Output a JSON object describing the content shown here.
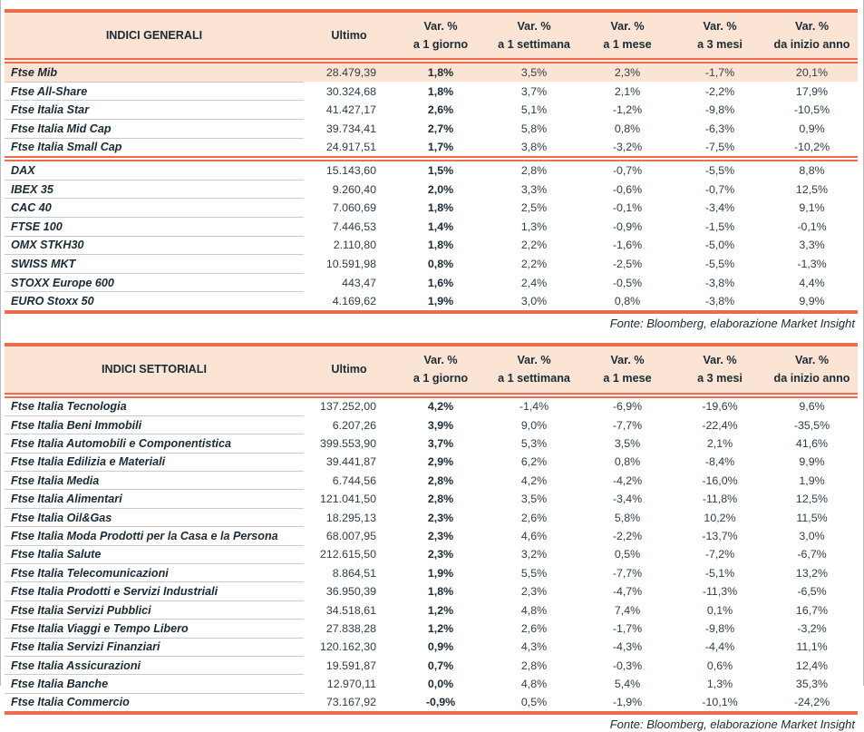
{
  "colors": {
    "accent": "#ED6B4F",
    "header_bg": "#FBE4D3",
    "highlight_row_bg": "#FBE4D3",
    "row_separator": "#CBCBCB",
    "text": "#1B2A35"
  },
  "column_headers": {
    "value_label": "Ultimo",
    "variations": [
      {
        "line1": "Var. %",
        "line2": "a 1 giorno"
      },
      {
        "line1": "Var. %",
        "line2": "a 1 settimana"
      },
      {
        "line1": "Var. %",
        "line2": "a 1 mese"
      },
      {
        "line1": "Var. %",
        "line2": "a 3 mesi"
      },
      {
        "line1": "Var. %",
        "line2": "da inizio anno"
      }
    ]
  },
  "tables": [
    {
      "title": "INDICI GENERALI",
      "source": "Fonte: Bloomberg, elaborazione Market Insight",
      "sections": [
        {
          "rows": [
            {
              "label": "Ftse Mib",
              "highlight": true,
              "values": [
                "28.479,39",
                "1,8%",
                "3,5%",
                "2,3%",
                "-1,7%",
                "20,1%"
              ]
            },
            {
              "label": "Ftse All-Share",
              "values": [
                "30.324,68",
                "1,8%",
                "3,7%",
                "2,1%",
                "-2,2%",
                "17,9%"
              ]
            },
            {
              "label": "Ftse Italia Star",
              "values": [
                "41.427,17",
                "2,6%",
                "5,1%",
                "-1,2%",
                "-9,8%",
                "-10,5%"
              ]
            },
            {
              "label": "Ftse Italia Mid Cap",
              "values": [
                "39.734,41",
                "2,7%",
                "5,8%",
                "0,8%",
                "-6,3%",
                "0,9%"
              ]
            },
            {
              "label": "Ftse Italia Small Cap",
              "values": [
                "24.917,51",
                "1,7%",
                "3,8%",
                "-3,2%",
                "-7,5%",
                "-10,2%"
              ]
            }
          ]
        },
        {
          "rows": [
            {
              "label": "DAX",
              "values": [
                "15.143,60",
                "1,5%",
                "2,8%",
                "-0,7%",
                "-5,5%",
                "8,8%"
              ]
            },
            {
              "label": "IBEX 35",
              "values": [
                "9.260,40",
                "2,0%",
                "3,3%",
                "-0,6%",
                "-0,7%",
                "12,5%"
              ]
            },
            {
              "label": "CAC 40",
              "values": [
                "7.060,69",
                "1,8%",
                "2,5%",
                "-0,1%",
                "-3,4%",
                "9,1%"
              ]
            },
            {
              "label": "FTSE 100",
              "values": [
                "7.446,53",
                "1,4%",
                "1,3%",
                "-0,9%",
                "-1,5%",
                "-0,1%"
              ]
            },
            {
              "label": "OMX STKH30",
              "values": [
                "2.110,80",
                "1,8%",
                "2,2%",
                "-1,6%",
                "-5,0%",
                "3,3%"
              ]
            },
            {
              "label": "SWISS MKT",
              "values": [
                "10.591,98",
                "0,8%",
                "2,2%",
                "-2,5%",
                "-5,5%",
                "-1,3%"
              ]
            },
            {
              "label": "STOXX Europe 600",
              "values": [
                "443,47",
                "1,6%",
                "2,4%",
                "-0,5%",
                "-3,8%",
                "4,4%"
              ]
            },
            {
              "label": "EURO Stoxx 50",
              "values": [
                "4.169,62",
                "1,9%",
                "3,0%",
                "0,8%",
                "-3,8%",
                "9,9%"
              ]
            }
          ]
        }
      ]
    },
    {
      "title": "INDICI SETTORIALI",
      "source": "Fonte: Bloomberg, elaborazione Market Insight",
      "sections": [
        {
          "rows": [
            {
              "label": "Ftse Italia Tecnologia",
              "values": [
                "137.252,00",
                "4,2%",
                "-1,4%",
                "-6,9%",
                "-19,6%",
                "9,6%"
              ]
            },
            {
              "label": "Ftse Italia Beni Immobili",
              "values": [
                "6.207,26",
                "3,9%",
                "9,0%",
                "-7,7%",
                "-22,4%",
                "-35,5%"
              ]
            },
            {
              "label": "Ftse Italia Automobili e Componentistica",
              "values": [
                "399.553,90",
                "3,7%",
                "5,3%",
                "3,5%",
                "2,1%",
                "41,6%"
              ]
            },
            {
              "label": "Ftse Italia Edilizia e Materiali",
              "values": [
                "39.441,87",
                "2,9%",
                "6,2%",
                "0,8%",
                "-8,4%",
                "9,9%"
              ]
            },
            {
              "label": "Ftse Italia Media",
              "values": [
                "6.744,56",
                "2,8%",
                "4,2%",
                "-4,2%",
                "-16,0%",
                "1,9%"
              ]
            },
            {
              "label": "Ftse Italia Alimentari",
              "values": [
                "121.041,50",
                "2,8%",
                "3,5%",
                "-3,4%",
                "-11,8%",
                "12,5%"
              ]
            },
            {
              "label": "Ftse Italia Oil&Gas",
              "values": [
                "18.295,13",
                "2,3%",
                "2,6%",
                "5,8%",
                "10,2%",
                "11,5%"
              ]
            },
            {
              "label": "Ftse Italia Moda Prodotti per la Casa e la Persona",
              "values": [
                "68.007,95",
                "2,3%",
                "4,6%",
                "-2,2%",
                "-13,7%",
                "3,0%"
              ]
            },
            {
              "label": "Ftse Italia Salute",
              "values": [
                "212.615,50",
                "2,3%",
                "3,2%",
                "0,5%",
                "-7,2%",
                "-6,7%"
              ]
            },
            {
              "label": "Ftse Italia Telecomunicazioni",
              "values": [
                "8.864,51",
                "1,9%",
                "5,5%",
                "-7,7%",
                "-5,1%",
                "13,2%"
              ]
            },
            {
              "label": "Ftse Italia Prodotti e Servizi Industriali",
              "values": [
                "36.950,39",
                "1,8%",
                "2,3%",
                "-4,7%",
                "-11,3%",
                "-6,5%"
              ]
            },
            {
              "label": "Ftse Italia Servizi Pubblici",
              "values": [
                "34.518,61",
                "1,2%",
                "4,8%",
                "7,4%",
                "0,1%",
                "16,7%"
              ]
            },
            {
              "label": "Ftse Italia Viaggi e Tempo Libero",
              "values": [
                "27.838,28",
                "1,2%",
                "2,6%",
                "-1,7%",
                "-9,8%",
                "-3,2%"
              ]
            },
            {
              "label": "Ftse Italia Servizi Finanziari",
              "values": [
                "120.162,30",
                "0,9%",
                "4,3%",
                "-4,3%",
                "-4,4%",
                "11,1%"
              ]
            },
            {
              "label": "Ftse Italia Assicurazioni",
              "values": [
                "19.591,87",
                "0,7%",
                "2,8%",
                "-0,3%",
                "0,6%",
                "12,4%"
              ]
            },
            {
              "label": "Ftse Italia Banche",
              "values": [
                "12.970,11",
                "0,0%",
                "4,8%",
                "5,4%",
                "1,3%",
                "35,3%"
              ]
            },
            {
              "label": "Ftse Italia Commercio",
              "values": [
                "73.167,92",
                "-0,9%",
                "0,5%",
                "-1,9%",
                "-10,1%",
                "-24,2%"
              ]
            }
          ]
        }
      ]
    }
  ]
}
